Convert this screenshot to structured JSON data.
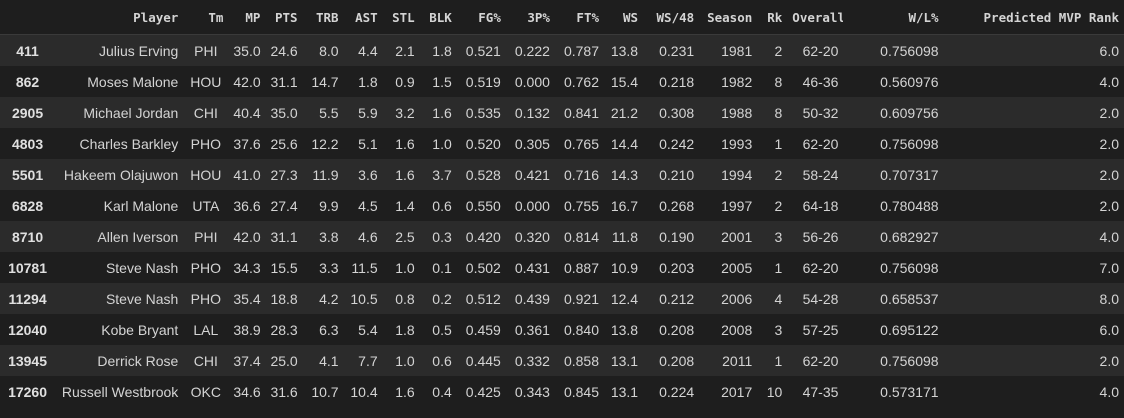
{
  "table": {
    "columns": [
      "",
      "Player",
      "Tm",
      "MP",
      "PTS",
      "TRB",
      "AST",
      "STL",
      "BLK",
      "FG%",
      "3P%",
      "FT%",
      "WS",
      "WS/48",
      "Season",
      "Rk",
      "Overall",
      "W/L%",
      "Predicted MVP Rank"
    ],
    "rows": [
      [
        "411",
        "Julius Erving",
        "PHI",
        "35.0",
        "24.6",
        "8.0",
        "4.4",
        "2.1",
        "1.8",
        "0.521",
        "0.222",
        "0.787",
        "13.8",
        "0.231",
        "1981",
        "2",
        "62-20",
        "0.756098",
        "6.0"
      ],
      [
        "862",
        "Moses Malone",
        "HOU",
        "42.0",
        "31.1",
        "14.7",
        "1.8",
        "0.9",
        "1.5",
        "0.519",
        "0.000",
        "0.762",
        "15.4",
        "0.218",
        "1982",
        "8",
        "46-36",
        "0.560976",
        "4.0"
      ],
      [
        "2905",
        "Michael Jordan",
        "CHI",
        "40.4",
        "35.0",
        "5.5",
        "5.9",
        "3.2",
        "1.6",
        "0.535",
        "0.132",
        "0.841",
        "21.2",
        "0.308",
        "1988",
        "8",
        "50-32",
        "0.609756",
        "2.0"
      ],
      [
        "4803",
        "Charles Barkley",
        "PHO",
        "37.6",
        "25.6",
        "12.2",
        "5.1",
        "1.6",
        "1.0",
        "0.520",
        "0.305",
        "0.765",
        "14.4",
        "0.242",
        "1993",
        "1",
        "62-20",
        "0.756098",
        "2.0"
      ],
      [
        "5501",
        "Hakeem Olajuwon",
        "HOU",
        "41.0",
        "27.3",
        "11.9",
        "3.6",
        "1.6",
        "3.7",
        "0.528",
        "0.421",
        "0.716",
        "14.3",
        "0.210",
        "1994",
        "2",
        "58-24",
        "0.707317",
        "2.0"
      ],
      [
        "6828",
        "Karl Malone",
        "UTA",
        "36.6",
        "27.4",
        "9.9",
        "4.5",
        "1.4",
        "0.6",
        "0.550",
        "0.000",
        "0.755",
        "16.7",
        "0.268",
        "1997",
        "2",
        "64-18",
        "0.780488",
        "2.0"
      ],
      [
        "8710",
        "Allen Iverson",
        "PHI",
        "42.0",
        "31.1",
        "3.8",
        "4.6",
        "2.5",
        "0.3",
        "0.420",
        "0.320",
        "0.814",
        "11.8",
        "0.190",
        "2001",
        "3",
        "56-26",
        "0.682927",
        "4.0"
      ],
      [
        "10781",
        "Steve Nash",
        "PHO",
        "34.3",
        "15.5",
        "3.3",
        "11.5",
        "1.0",
        "0.1",
        "0.502",
        "0.431",
        "0.887",
        "10.9",
        "0.203",
        "2005",
        "1",
        "62-20",
        "0.756098",
        "7.0"
      ],
      [
        "11294",
        "Steve Nash",
        "PHO",
        "35.4",
        "18.8",
        "4.2",
        "10.5",
        "0.8",
        "0.2",
        "0.512",
        "0.439",
        "0.921",
        "12.4",
        "0.212",
        "2006",
        "4",
        "54-28",
        "0.658537",
        "8.0"
      ],
      [
        "12040",
        "Kobe Bryant",
        "LAL",
        "38.9",
        "28.3",
        "6.3",
        "5.4",
        "1.8",
        "0.5",
        "0.459",
        "0.361",
        "0.840",
        "13.8",
        "0.208",
        "2008",
        "3",
        "57-25",
        "0.695122",
        "6.0"
      ],
      [
        "13945",
        "Derrick Rose",
        "CHI",
        "37.4",
        "25.0",
        "4.1",
        "7.7",
        "1.0",
        "0.6",
        "0.445",
        "0.332",
        "0.858",
        "13.1",
        "0.208",
        "2011",
        "1",
        "62-20",
        "0.756098",
        "2.0"
      ],
      [
        "17260",
        "Russell Westbrook",
        "OKC",
        "34.6",
        "31.6",
        "10.7",
        "10.4",
        "1.6",
        "0.4",
        "0.425",
        "0.343",
        "0.845",
        "13.1",
        "0.224",
        "2017",
        "10",
        "47-35",
        "0.573171",
        "4.0"
      ]
    ]
  }
}
